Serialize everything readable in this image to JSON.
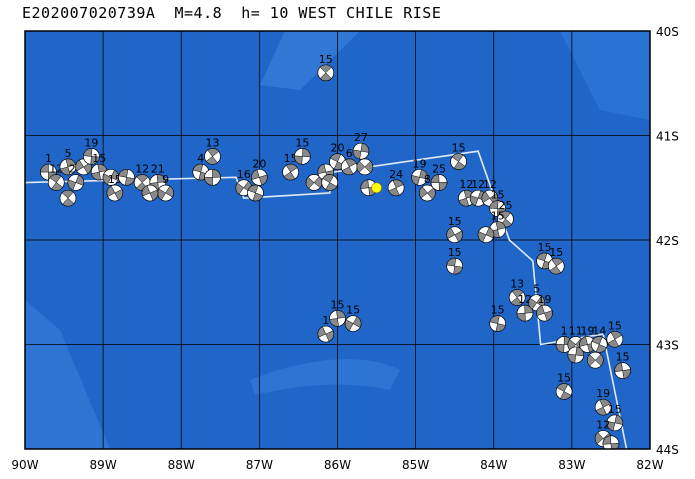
{
  "title": "E202007020739A  M=4.8  h= 10 WEST CHILE RISE",
  "map": {
    "lon_range": [
      -90,
      -82
    ],
    "lat_range": [
      -44,
      -40
    ],
    "lon_ticks": [
      {
        "value": -90,
        "label": "90W"
      },
      {
        "value": -89,
        "label": "89W"
      },
      {
        "value": -88,
        "label": "88W"
      },
      {
        "value": -87,
        "label": "87W"
      },
      {
        "value": -86,
        "label": "86W"
      },
      {
        "value": -85,
        "label": "85W"
      },
      {
        "value": -84,
        "label": "84W"
      },
      {
        "value": -83,
        "label": "83W"
      },
      {
        "value": -82,
        "label": "82W"
      }
    ],
    "lat_ticks": [
      {
        "value": -40,
        "label": "40S"
      },
      {
        "value": -41,
        "label": "41S"
      },
      {
        "value": -42,
        "label": "42S"
      },
      {
        "value": -43,
        "label": "43S"
      },
      {
        "value": -44,
        "label": "44S"
      }
    ],
    "colors": {
      "ocean": "#1f66c8",
      "ocean_light": "#3f86e0",
      "grid": "#000000",
      "plate_boundary": "#dfe8f5",
      "compression": "#8a8a8a",
      "dilatation": "#ffffff",
      "event_marker": "#ffff00"
    },
    "plate_boundary": [
      [
        -90,
        -41.45
      ],
      [
        -87.3,
        -41.4
      ],
      [
        -87.2,
        -41.6
      ],
      [
        -86.1,
        -41.55
      ],
      [
        -86.05,
        -41.35
      ],
      [
        -84.2,
        -41.15
      ],
      [
        -83.8,
        -42.0
      ],
      [
        -83.5,
        -42.2
      ],
      [
        -83.4,
        -43.0
      ],
      [
        -82.6,
        -42.9
      ],
      [
        -82.3,
        -44.0
      ]
    ],
    "event": {
      "lon": -85.5,
      "lat": -41.5
    },
    "mechanisms": [
      {
        "lon": -89.7,
        "lat": -41.35,
        "label": "1"
      },
      {
        "lon": -89.6,
        "lat": -41.45,
        "label": "12"
      },
      {
        "lon": -89.45,
        "lat": -41.3,
        "label": "5"
      },
      {
        "lon": -89.35,
        "lat": -41.45,
        "label": "22"
      },
      {
        "lon": -89.25,
        "lat": -41.3,
        "label": ""
      },
      {
        "lon": -89.15,
        "lat": -41.2,
        "label": "19"
      },
      {
        "lon": -89.45,
        "lat": -41.6,
        "label": ""
      },
      {
        "lon": -89.05,
        "lat": -41.35,
        "label": "15"
      },
      {
        "lon": -88.9,
        "lat": -41.4,
        "label": ""
      },
      {
        "lon": -88.85,
        "lat": -41.55,
        "label": "15"
      },
      {
        "lon": -88.7,
        "lat": -41.4,
        "label": ""
      },
      {
        "lon": -88.5,
        "lat": -41.45,
        "label": "12"
      },
      {
        "lon": -88.3,
        "lat": -41.45,
        "label": "21"
      },
      {
        "lon": -88.2,
        "lat": -41.55,
        "label": "9"
      },
      {
        "lon": -88.4,
        "lat": -41.55,
        "label": ""
      },
      {
        "lon": -87.75,
        "lat": -41.35,
        "label": "4"
      },
      {
        "lon": -87.6,
        "lat": -41.2,
        "label": "13"
      },
      {
        "lon": -87.6,
        "lat": -41.4,
        "label": ""
      },
      {
        "lon": -87.2,
        "lat": -41.5,
        "label": "16"
      },
      {
        "lon": -87.0,
        "lat": -41.4,
        "label": "20"
      },
      {
        "lon": -87.05,
        "lat": -41.55,
        "label": ""
      },
      {
        "lon": -86.6,
        "lat": -41.35,
        "label": "15"
      },
      {
        "lon": -86.45,
        "lat": -41.2,
        "label": "15"
      },
      {
        "lon": -86.3,
        "lat": -41.45,
        "label": ""
      },
      {
        "lon": -86.15,
        "lat": -41.35,
        "label": ""
      },
      {
        "lon": -86.0,
        "lat": -41.25,
        "label": "20"
      },
      {
        "lon": -85.85,
        "lat": -41.3,
        "label": "6"
      },
      {
        "lon": -85.7,
        "lat": -41.15,
        "label": "27"
      },
      {
        "lon": -85.65,
        "lat": -41.3,
        "label": ""
      },
      {
        "lon": -85.6,
        "lat": -41.5,
        "label": ""
      },
      {
        "lon": -86.1,
        "lat": -41.45,
        "label": ""
      },
      {
        "lon": -85.25,
        "lat": -41.5,
        "label": "24"
      },
      {
        "lon": -84.95,
        "lat": -41.4,
        "label": "19"
      },
      {
        "lon": -84.85,
        "lat": -41.55,
        "label": "8"
      },
      {
        "lon": -84.7,
        "lat": -41.45,
        "label": "25"
      },
      {
        "lon": -84.45,
        "lat": -41.25,
        "label": "15"
      },
      {
        "lon": -84.35,
        "lat": -41.6,
        "label": "12"
      },
      {
        "lon": -84.2,
        "lat": -41.6,
        "label": "12"
      },
      {
        "lon": -84.05,
        "lat": -41.6,
        "label": "12"
      },
      {
        "lon": -83.95,
        "lat": -41.7,
        "label": "15"
      },
      {
        "lon": -83.85,
        "lat": -41.8,
        "label": "25"
      },
      {
        "lon": -83.95,
        "lat": -41.9,
        "label": "15"
      },
      {
        "lon": -84.1,
        "lat": -41.95,
        "label": ""
      },
      {
        "lon": -84.5,
        "lat": -41.95,
        "label": "15"
      },
      {
        "lon": -84.5,
        "lat": -42.25,
        "label": "15"
      },
      {
        "lon": -86.15,
        "lat": -40.4,
        "label": "15"
      },
      {
        "lon": -86.0,
        "lat": -42.75,
        "label": "15"
      },
      {
        "lon": -85.8,
        "lat": -42.8,
        "label": "15"
      },
      {
        "lon": -86.15,
        "lat": -42.9,
        "label": "1"
      },
      {
        "lon": -83.95,
        "lat": -42.8,
        "label": "15"
      },
      {
        "lon": -83.7,
        "lat": -42.55,
        "label": "13"
      },
      {
        "lon": -83.6,
        "lat": -42.7,
        "label": "12"
      },
      {
        "lon": -83.45,
        "lat": -42.6,
        "label": "5"
      },
      {
        "lon": -83.35,
        "lat": -42.7,
        "label": "19"
      },
      {
        "lon": -83.35,
        "lat": -42.2,
        "label": "15"
      },
      {
        "lon": -83.2,
        "lat": -42.25,
        "label": "15"
      },
      {
        "lon": -83.1,
        "lat": -43.0,
        "label": "1"
      },
      {
        "lon": -82.95,
        "lat": -43.0,
        "label": "11"
      },
      {
        "lon": -82.8,
        "lat": -43.0,
        "label": "19"
      },
      {
        "lon": -82.65,
        "lat": -43.0,
        "label": "14"
      },
      {
        "lon": -82.45,
        "lat": -42.95,
        "label": "15"
      },
      {
        "lon": -82.95,
        "lat": -43.1,
        "label": ""
      },
      {
        "lon": -82.7,
        "lat": -43.15,
        "label": ""
      },
      {
        "lon": -82.35,
        "lat": -43.25,
        "label": "15"
      },
      {
        "lon": -83.1,
        "lat": -43.45,
        "label": "15"
      },
      {
        "lon": -82.6,
        "lat": -43.6,
        "label": "19"
      },
      {
        "lon": -82.45,
        "lat": -43.75,
        "label": "15"
      },
      {
        "lon": -82.6,
        "lat": -43.9,
        "label": "12"
      },
      {
        "lon": -82.5,
        "lat": -43.95,
        "label": ""
      }
    ]
  }
}
